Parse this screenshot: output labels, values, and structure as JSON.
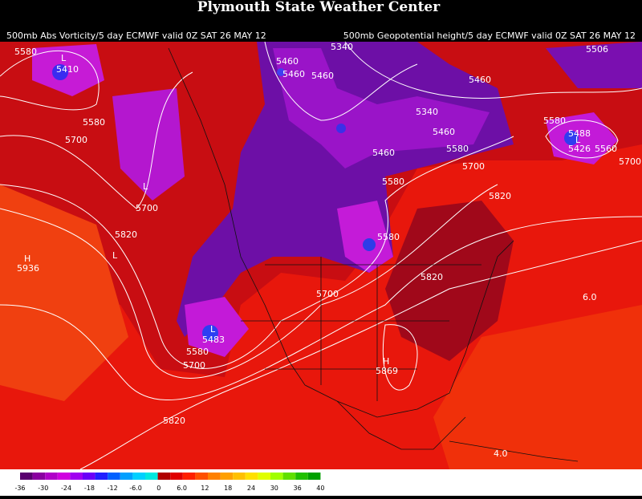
{
  "header": {
    "title": "Plymouth State Weather Center",
    "left_caption": "500mb Abs Vorticity/5 day ECMWF valid 0Z SAT 26 MAY 12",
    "right_caption": "500mb Geopotential height/5 day ECMWF valid 0Z SAT 26 MAY 12"
  },
  "contour_labels": [
    "5580",
    "5410",
    "5460",
    "5340",
    "5506",
    "5460",
    "5460",
    "5460",
    "5340",
    "5580",
    "5700",
    "5460",
    "5580",
    "5488",
    "5580",
    "5460",
    "5426",
    "5560",
    "5700",
    "5700",
    "5580",
    "5820",
    "5700",
    "5820",
    "5580",
    "5936",
    "5820",
    "5700",
    "5483",
    "5580",
    "5700",
    "5869",
    "5820",
    "6.0",
    "4.0"
  ],
  "pressure_centers": [
    "L",
    "L",
    "H",
    "H",
    "L",
    "L",
    "L"
  ],
  "colorbar": {
    "labels": [
      "-36",
      "-30",
      "-24",
      "-18",
      "-12",
      "-6.0",
      "0",
      "6.0",
      "12",
      "18",
      "24",
      "30",
      "36",
      "40"
    ]
  }
}
